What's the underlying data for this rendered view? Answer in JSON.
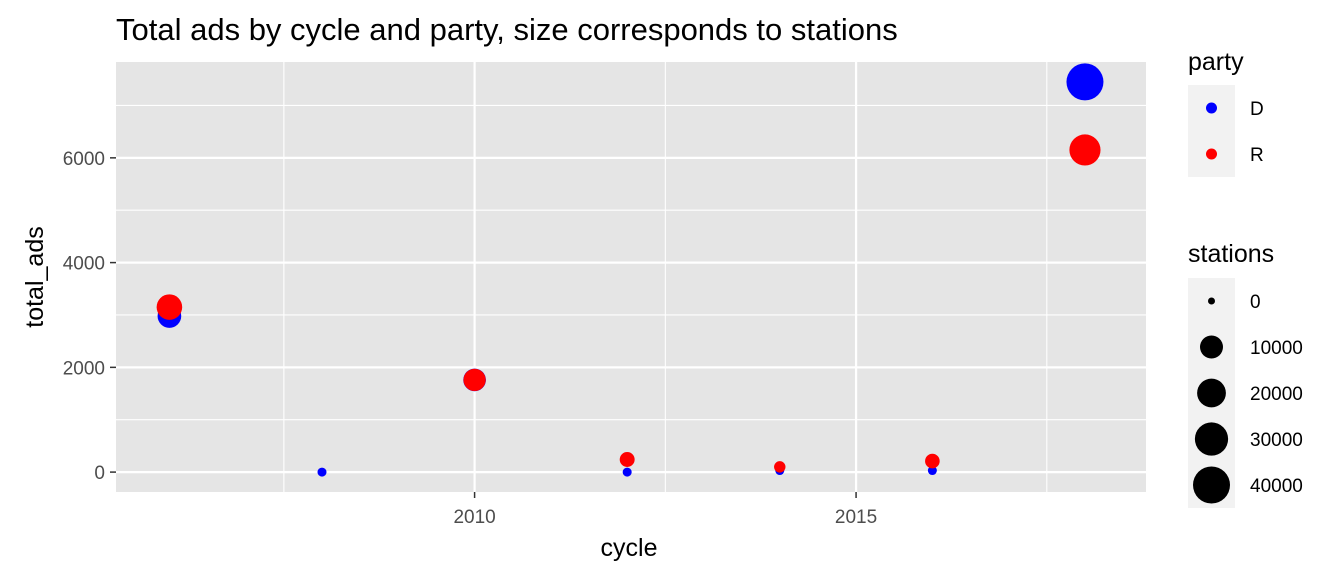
{
  "chart_data": {
    "type": "scatter",
    "title": "Total ads by cycle and party, size corresponds to stations",
    "xlabel": "cycle",
    "ylabel": "total_ads",
    "xlim": [
      2005.3,
      2018.8
    ],
    "ylim": [
      -380,
      7830
    ],
    "x_ticks": [
      2010,
      2015
    ],
    "y_ticks": [
      0,
      2000,
      4000,
      6000
    ],
    "x_minor_ticks": [
      2007.5,
      2012.5,
      2017.5
    ],
    "y_minor_ticks": [
      1000,
      3000,
      5000,
      7000
    ],
    "grid": true,
    "panel_background": "#e5e5e5",
    "gridline_color": "#ffffff",
    "legends": {
      "color": {
        "title": "party",
        "entries": [
          {
            "label": "D",
            "color": "#0000ff"
          },
          {
            "label": "R",
            "color": "#ff0000"
          }
        ],
        "placement": "right"
      },
      "size": {
        "title": "stations",
        "breaks": [
          0,
          10000,
          20000,
          30000,
          40000
        ],
        "labels": [
          "0",
          "10000",
          "20000",
          "30000",
          "40000"
        ],
        "placement": "right"
      }
    },
    "series": [
      {
        "name": "D",
        "color": "#0000ff",
        "points": [
          {
            "x": 2006,
            "y": 2980,
            "stations": 11000
          },
          {
            "x": 2008,
            "y": 0,
            "stations": 0
          },
          {
            "x": 2010,
            "y": 1760,
            "stations": 9500
          },
          {
            "x": 2012,
            "y": 0,
            "stations": 0
          },
          {
            "x": 2014,
            "y": 30,
            "stations": 0
          },
          {
            "x": 2016,
            "y": 30,
            "stations": 0
          },
          {
            "x": 2018,
            "y": 7450,
            "stations": 40000
          }
        ]
      },
      {
        "name": "R",
        "color": "#ff0000",
        "points": [
          {
            "x": 2006,
            "y": 3150,
            "stations": 14000
          },
          {
            "x": 2010,
            "y": 1760,
            "stations": 9000
          },
          {
            "x": 2012,
            "y": 240,
            "stations": 1800
          },
          {
            "x": 2014,
            "y": 100,
            "stations": 300
          },
          {
            "x": 2016,
            "y": 210,
            "stations": 1600
          },
          {
            "x": 2018,
            "y": 6150,
            "stations": 25000
          }
        ]
      }
    ]
  }
}
